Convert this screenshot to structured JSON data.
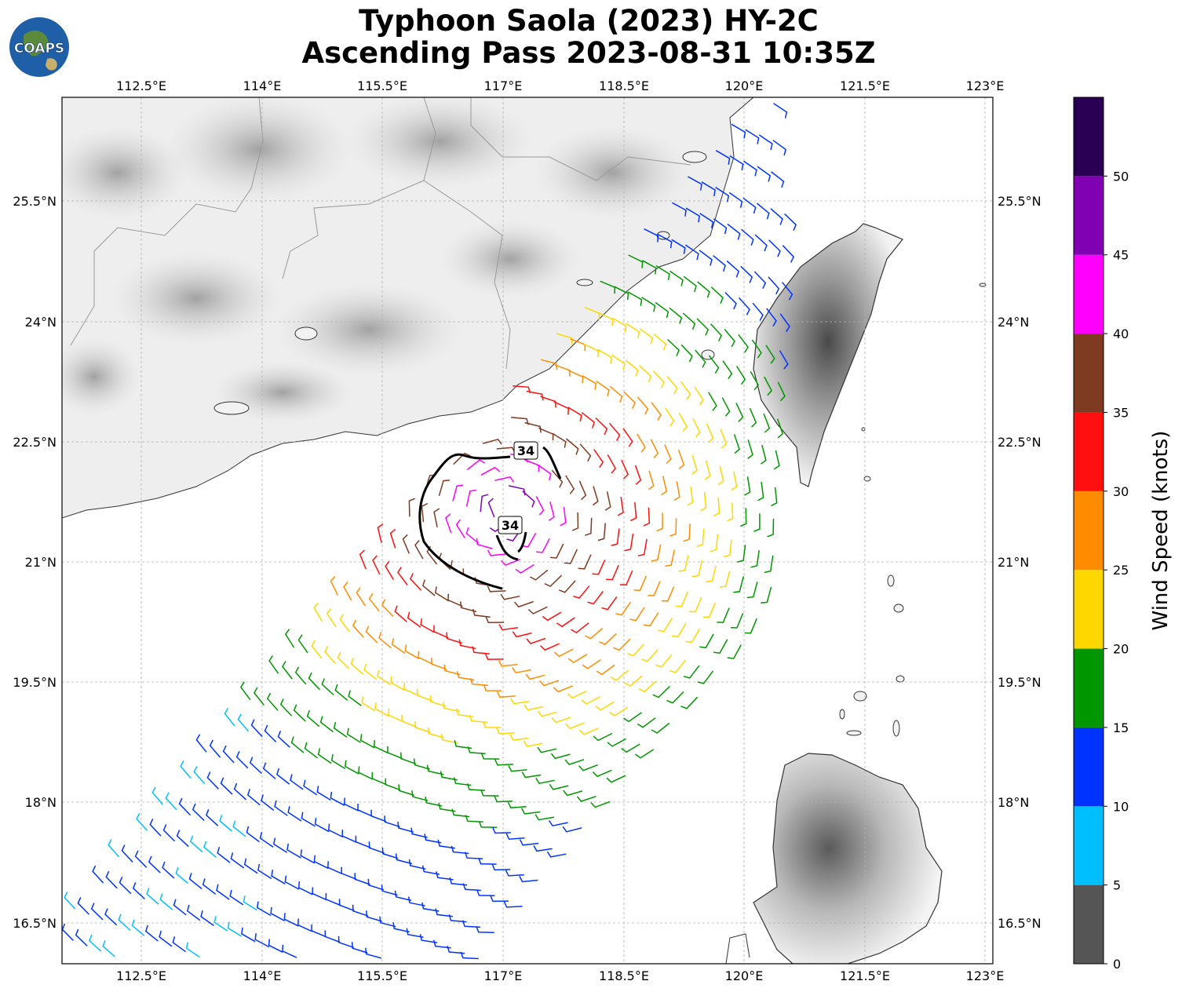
{
  "title": {
    "line1": "Typhoon Saola (2023) HY-2C",
    "line2": "Ascending Pass 2023-08-31 10:35Z"
  },
  "logo": {
    "text": "COAPS"
  },
  "map": {
    "lon_ticks": [
      "112.5°E",
      "114°E",
      "115.5°E",
      "117°E",
      "118.5°E",
      "120°E",
      "121.5°E",
      "123°E"
    ],
    "lat_ticks": [
      "25.5°N",
      "24°N",
      "22.5°N",
      "21°N",
      "19.5°N",
      "18°N",
      "16.5°N"
    ],
    "contour_labels": [
      "34",
      "34"
    ]
  },
  "chart_data": {
    "type": "wind_barbs",
    "lon_range": [
      111.4,
      123.1
    ],
    "lat_range": [
      15.9,
      26.7
    ],
    "contour_level_knots": 34,
    "colorbar": {
      "label": "Wind Speed (knots)",
      "ticks": [
        "0",
        "5",
        "10",
        "15",
        "20",
        "25",
        "30",
        "35",
        "40",
        "45",
        "50"
      ],
      "colors": [
        "#555555",
        "#00bfff",
        "#0033ff",
        "#009600",
        "#ffd700",
        "#ff8c00",
        "#ff0f0f",
        "#7f3a22",
        "#ff00ff",
        "#8000b3",
        "#2a0055"
      ]
    }
  }
}
